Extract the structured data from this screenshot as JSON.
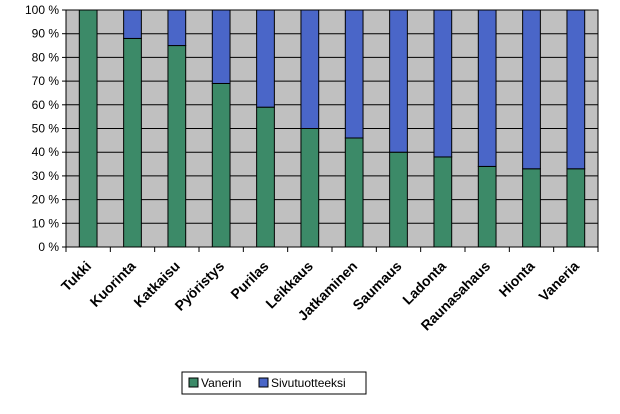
{
  "chart_data": {
    "type": "bar",
    "stacked": true,
    "percent": true,
    "categories": [
      "Tukki",
      "Kuorinta",
      "Katkaisu",
      "Pyöristys",
      "Purilas",
      "Leikkaus",
      "Jatkaminen",
      "Saumaus",
      "Ladonta",
      "Raunasahaus",
      "Hionta",
      "Vaneria"
    ],
    "series": [
      {
        "name": "Vanerin",
        "color": "#3c8a68",
        "values": [
          100,
          88,
          85,
          69,
          59,
          50,
          46,
          40,
          38,
          34,
          33,
          33
        ]
      },
      {
        "name": "Sivutuotteeksi",
        "color": "#4a66c8",
        "values": [
          0,
          12,
          15,
          31,
          41,
          50,
          54,
          60,
          62,
          66,
          67,
          67
        ]
      }
    ],
    "ylim": [
      0,
      100
    ],
    "yticks": [
      "0 %",
      "10 %",
      "20 %",
      "30 %",
      "40 %",
      "50 %",
      "60 %",
      "70 %",
      "80 %",
      "90 %",
      "100 %"
    ],
    "grid": true,
    "plot_background": "#c0c0c0",
    "legend_position": "bottom"
  }
}
